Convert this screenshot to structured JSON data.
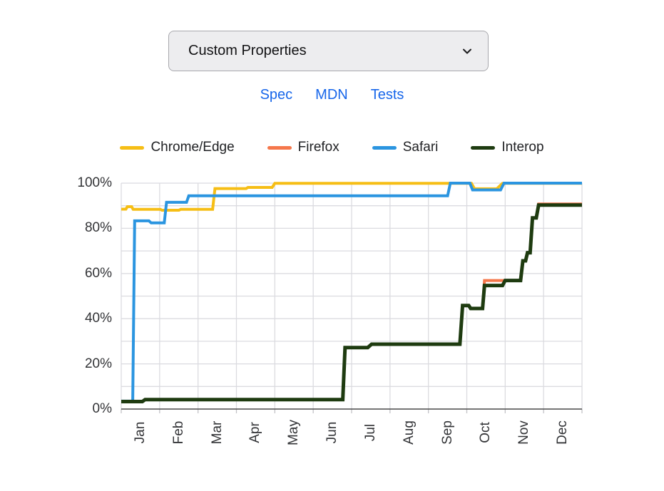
{
  "dropdown": {
    "value": "Custom Properties"
  },
  "links": {
    "color": "#1766ea",
    "items": [
      {
        "label": "Spec"
      },
      {
        "label": "MDN"
      },
      {
        "label": "Tests"
      }
    ]
  },
  "chart_data": {
    "type": "line",
    "title": "",
    "xlabel": "",
    "ylabel": "",
    "x_unit": "months",
    "x_months": 12,
    "x_labels": [
      "Jan",
      "Feb",
      "Mar",
      "Apr",
      "May",
      "Jun",
      "Jul",
      "Aug",
      "Sep",
      "Oct",
      "Nov",
      "Dec"
    ],
    "y_tick_labels": [
      "100%",
      "80%",
      "60%",
      "40%",
      "20%",
      "0%"
    ],
    "ylim": [
      0,
      100
    ],
    "grid": true,
    "legend_position": "top",
    "series": [
      {
        "name": "Chrome/Edge",
        "color": "#f6be15",
        "stroke_width": 4,
        "points": [
          [
            0,
            88.5
          ],
          [
            0.12,
            88.5
          ],
          [
            0.16,
            89.6
          ],
          [
            0.27,
            89.6
          ],
          [
            0.31,
            88.4
          ],
          [
            1.02,
            88.4
          ],
          [
            1.06,
            88.0
          ],
          [
            1.5,
            88.0
          ],
          [
            1.55,
            88.4
          ],
          [
            2.38,
            88.4
          ],
          [
            2.44,
            97.6
          ],
          [
            3.25,
            97.6
          ],
          [
            3.3,
            98.1
          ],
          [
            3.93,
            98.1
          ],
          [
            4.0,
            99.9
          ],
          [
            9.12,
            99.9
          ],
          [
            9.2,
            97.5
          ],
          [
            9.78,
            97.5
          ],
          [
            9.93,
            99.9
          ],
          [
            12,
            99.9
          ]
        ]
      },
      {
        "name": "Firefox",
        "color": "#f5774b",
        "stroke_width": 4,
        "points": [
          [
            0,
            3.3
          ],
          [
            0.55,
            3.3
          ],
          [
            0.62,
            4.2
          ],
          [
            5.77,
            4.2
          ],
          [
            5.83,
            27.2
          ],
          [
            6.42,
            27.2
          ],
          [
            6.52,
            28.7
          ],
          [
            8.82,
            28.7
          ],
          [
            8.89,
            45.8
          ],
          [
            9.05,
            45.8
          ],
          [
            9.1,
            44.5
          ],
          [
            9.41,
            44.5
          ],
          [
            9.46,
            56.9
          ],
          [
            10.4,
            56.9
          ],
          [
            10.46,
            65.6
          ],
          [
            10.53,
            65.6
          ],
          [
            10.58,
            69.2
          ],
          [
            10.65,
            69.2
          ],
          [
            10.71,
            84.6
          ],
          [
            10.81,
            84.6
          ],
          [
            10.87,
            90.8
          ],
          [
            12,
            90.8
          ]
        ]
      },
      {
        "name": "Safari",
        "color": "#2b95e0",
        "stroke_width": 4,
        "points": [
          [
            0,
            3.5
          ],
          [
            0.3,
            3.5
          ],
          [
            0.35,
            83.3
          ],
          [
            0.72,
            83.3
          ],
          [
            0.78,
            82.4
          ],
          [
            1.12,
            82.4
          ],
          [
            1.18,
            91.5
          ],
          [
            1.7,
            91.5
          ],
          [
            1.76,
            94.4
          ],
          [
            8.5,
            94.4
          ],
          [
            8.57,
            100
          ],
          [
            9.08,
            100
          ],
          [
            9.15,
            97.0
          ],
          [
            9.88,
            97.0
          ],
          [
            9.97,
            100
          ],
          [
            12,
            100
          ]
        ]
      },
      {
        "name": "Interop",
        "color": "#1e3b10",
        "stroke_width": 5,
        "points": [
          [
            0,
            3.3
          ],
          [
            0.55,
            3.3
          ],
          [
            0.62,
            4.2
          ],
          [
            5.77,
            4.2
          ],
          [
            5.83,
            27.2
          ],
          [
            6.42,
            27.2
          ],
          [
            6.52,
            28.7
          ],
          [
            8.82,
            28.7
          ],
          [
            8.89,
            45.8
          ],
          [
            9.05,
            45.8
          ],
          [
            9.1,
            44.5
          ],
          [
            9.41,
            44.5
          ],
          [
            9.46,
            54.7
          ],
          [
            9.93,
            54.7
          ],
          [
            10.0,
            56.9
          ],
          [
            10.4,
            56.9
          ],
          [
            10.46,
            65.6
          ],
          [
            10.53,
            65.6
          ],
          [
            10.58,
            69.2
          ],
          [
            10.65,
            69.2
          ],
          [
            10.71,
            84.6
          ],
          [
            10.81,
            84.6
          ],
          [
            10.87,
            90.3
          ],
          [
            12,
            90.3
          ]
        ]
      }
    ],
    "colors": {
      "gridline": "#dbdbe0",
      "axis_line": "#4a4a4a",
      "tick_mark": "#c2c2c7",
      "axis_text": "#333437"
    }
  }
}
